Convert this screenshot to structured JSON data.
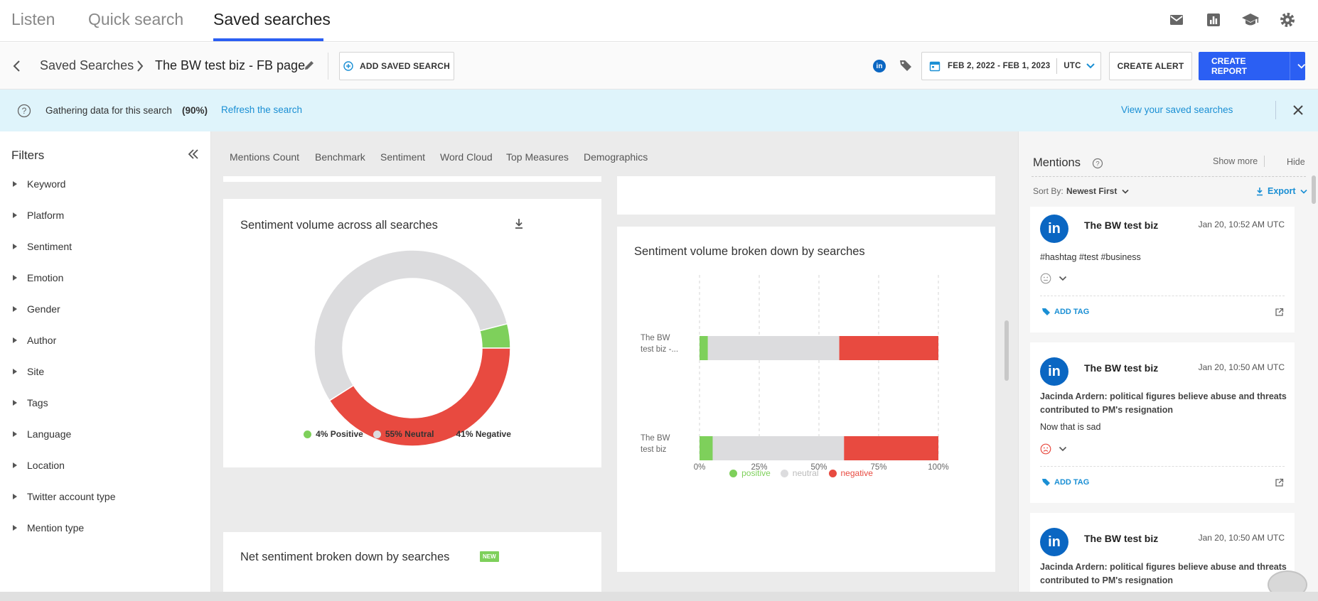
{
  "nav": {
    "tabs": [
      "Listen",
      "Quick search",
      "Saved searches"
    ],
    "active_tab": "Saved searches",
    "icons": [
      "mail-icon",
      "report-icon",
      "academy-icon",
      "settings-icon"
    ]
  },
  "toolbar": {
    "breadcrumb_parent": "Saved Searches",
    "breadcrumb_current": "The BW test biz - FB page",
    "add_saved_search": "ADD SAVED SEARCH",
    "date_range": "FEB 2, 2022 - FEB 1, 2023",
    "timezone": "UTC",
    "create_alert": "CREATE ALERT",
    "create_report": "CREATE REPORT"
  },
  "banner": {
    "message": "Gathering data for this search",
    "progress": "(90%)",
    "refresh_link": "Refresh the search",
    "view_link": "View your saved searches"
  },
  "filters": {
    "title": "Filters",
    "items": [
      "Keyword",
      "Platform",
      "Sentiment",
      "Emotion",
      "Gender",
      "Author",
      "Site",
      "Tags",
      "Language",
      "Location",
      "Twitter account type",
      "Mention type"
    ]
  },
  "subtabs": [
    "Mentions Count",
    "Benchmark",
    "Sentiment",
    "Word Cloud",
    "Top Measures",
    "Demographics"
  ],
  "donut": {
    "title": "Sentiment volume across all searches",
    "legend": [
      "4% Positive",
      "55% Neutral",
      "41% Negative"
    ]
  },
  "net_card": {
    "title": "Net sentiment broken down by searches",
    "badge": "NEW"
  },
  "chart_data": [
    {
      "type": "pie",
      "title": "Sentiment volume across all searches",
      "categories": [
        "Positive",
        "Neutral",
        "Negative"
      ],
      "values": [
        4,
        55,
        41
      ],
      "colors": [
        "#7ed05b",
        "#dcdcde",
        "#e84a40"
      ]
    },
    {
      "type": "bar",
      "orientation": "horizontal",
      "stacked": true,
      "title": "Sentiment volume broken down by searches",
      "categories": [
        "The BW test biz -...",
        "The BW test biz"
      ],
      "category_lines": [
        [
          "The BW",
          "test biz -..."
        ],
        [
          "The BW",
          "test biz"
        ]
      ],
      "series": [
        {
          "name": "positive",
          "values": [
            3.5,
            5.5
          ],
          "color": "#7ed05b"
        },
        {
          "name": "neutral",
          "values": [
            55,
            55
          ],
          "color": "#dcdcde"
        },
        {
          "name": "negative",
          "values": [
            41.5,
            39.5
          ],
          "color": "#e84a40"
        }
      ],
      "x_ticks": [
        "0%",
        "25%",
        "50%",
        "75%",
        "100%"
      ],
      "xlim": [
        0,
        100
      ],
      "grid": true,
      "legend_position": "bottom"
    }
  ],
  "mentions": {
    "title": "Mentions",
    "show_more": "Show more",
    "hide": "Hide",
    "sort_label": "Sort By:",
    "sort_value": "Newest First",
    "export": "Export",
    "add_tag": "ADD TAG",
    "items": [
      {
        "author": "The BW test biz",
        "time": "Jan 20, 10:52 AM UTC",
        "title": "",
        "text": "#hashtag #test #business",
        "sentiment": "neutral"
      },
      {
        "author": "The BW test biz",
        "time": "Jan 20, 10:50 AM UTC",
        "title": "Jacinda Ardern: political figures believe abuse and threats contributed to PM's resignation",
        "text": "Now that is sad",
        "sentiment": "negative"
      },
      {
        "author": "The BW test biz",
        "time": "Jan 20, 10:50 AM UTC",
        "title": "Jacinda Ardern: political figures believe abuse and threats contributed to PM's resignation",
        "text": "",
        "sentiment": ""
      }
    ]
  }
}
